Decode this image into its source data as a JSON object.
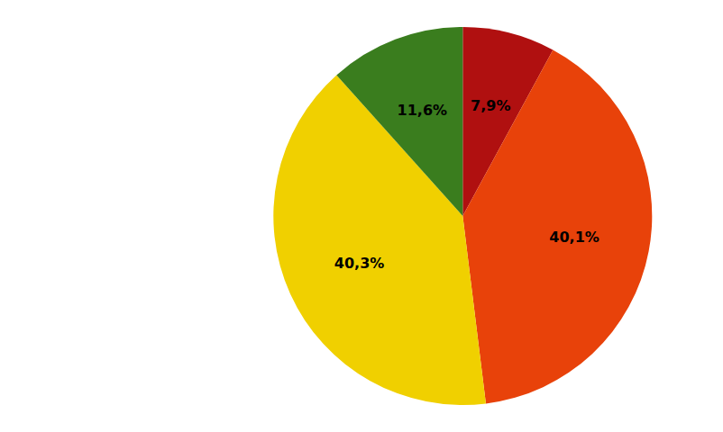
{
  "chart_data": {
    "type": "pie",
    "values": [
      7.9,
      40.1,
      40.3,
      11.6
    ],
    "value_labels": [
      "7,9%",
      "40,1%",
      "40,3%",
      "11,6%"
    ],
    "colors": [
      "#B01010",
      "#E8420A",
      "#F0D000",
      "#3A7D1E"
    ],
    "data_labels": true
  }
}
